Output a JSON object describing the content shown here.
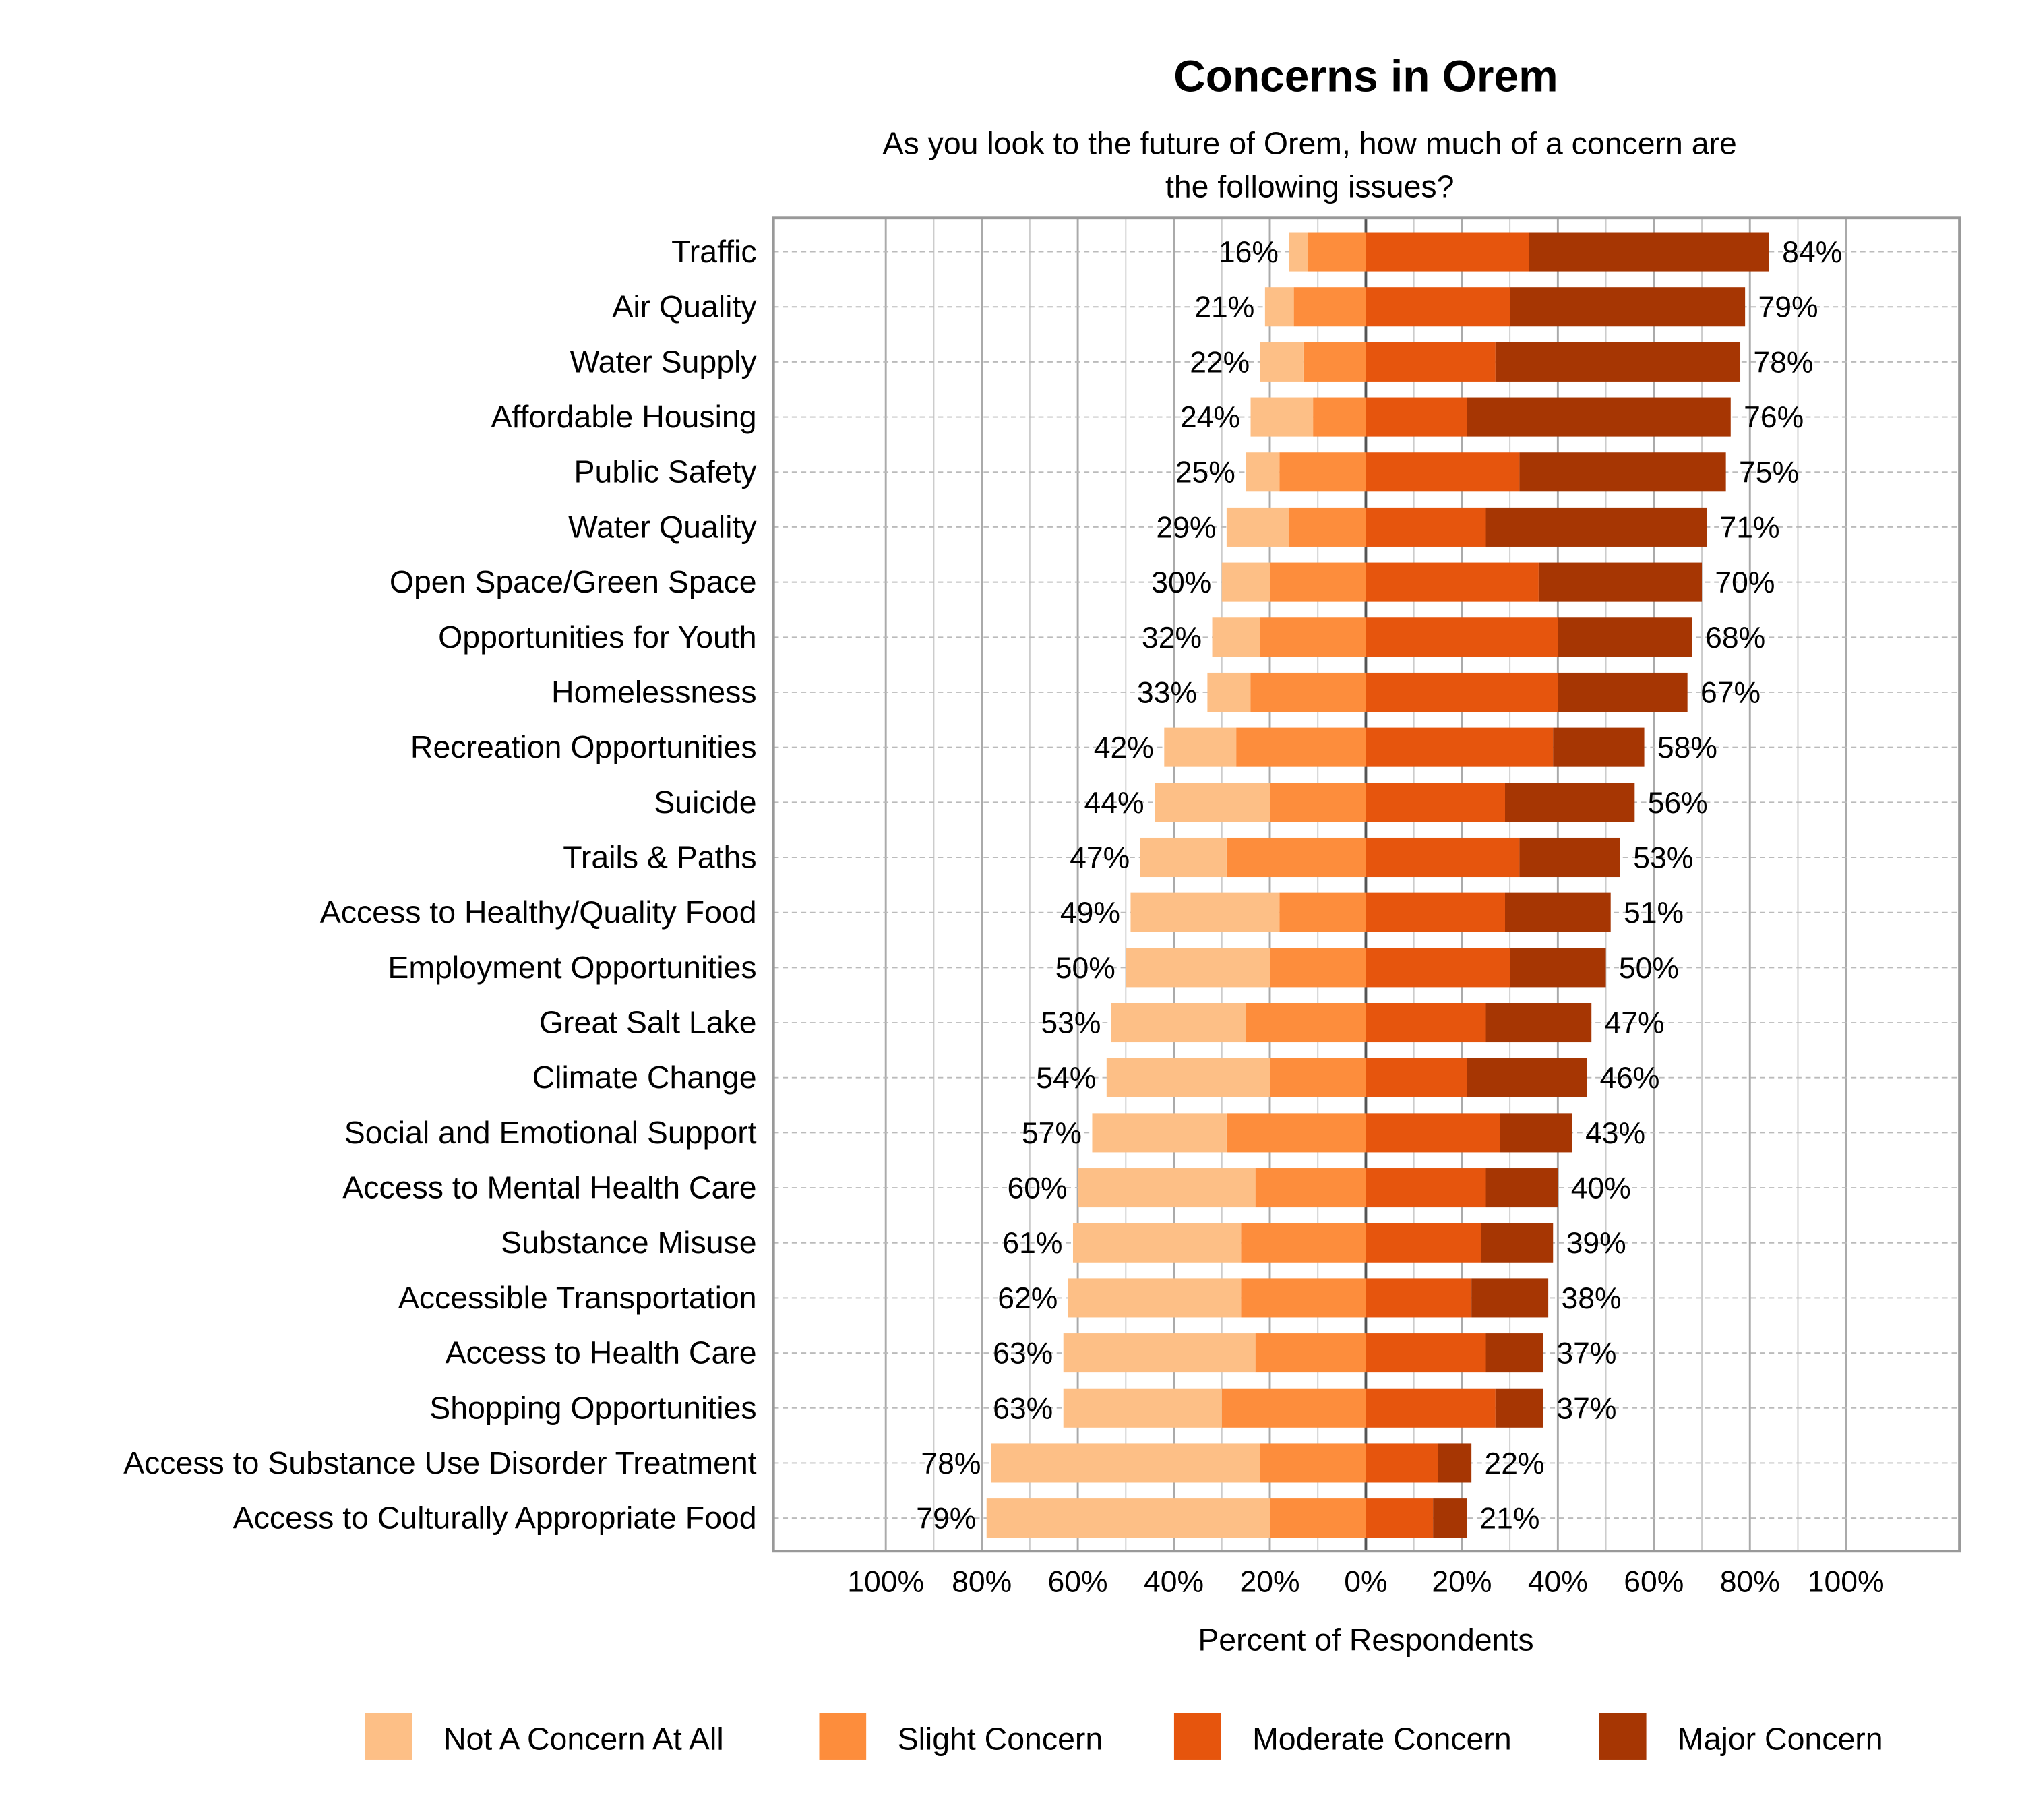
{
  "chart_data": {
    "type": "bar",
    "subtype": "diverging-stacked-horizontal",
    "title": "Concerns in Orem",
    "subtitle_lines": [
      "As you look to the future of Orem, how much of a concern are",
      "the following issues?"
    ],
    "xlabel": "Percent of Respondents",
    "ylabel": "",
    "xlim": [
      -100,
      100
    ],
    "x_ticks": [
      "100%",
      "80%",
      "60%",
      "40%",
      "20%",
      "0%",
      "20%",
      "40%",
      "60%",
      "80%",
      "100%"
    ],
    "grid": true,
    "legend_position": "bottom",
    "categories": [
      "Traffic",
      "Air Quality",
      "Water Supply",
      "Affordable Housing",
      "Public Safety",
      "Water Quality",
      "Open Space/Green Space",
      "Opportunities for Youth",
      "Homelessness",
      "Recreation Opportunities",
      "Suicide",
      "Trails & Paths",
      "Access to Healthy/Quality Food",
      "Employment Opportunities",
      "Great Salt Lake",
      "Climate Change",
      "Social and Emotional Support",
      "Access to Mental Health Care",
      "Substance Misuse",
      "Accessible Transportation",
      "Access to Health Care",
      "Shopping Opportunities",
      "Access to Substance Use Disorder Treatment",
      "Access to Culturally Appropriate Food"
    ],
    "series": [
      {
        "name": "Not A Concern At All",
        "color": "#FDBF86",
        "side": "left",
        "values": [
          4,
          6,
          9,
          13,
          7,
          13,
          10,
          10,
          9,
          15,
          24,
          18,
          31,
          30,
          28,
          34,
          28,
          37,
          35,
          36,
          40,
          33,
          56,
          59
        ]
      },
      {
        "name": "Slight Concern",
        "color": "#FD8D3C",
        "side": "left",
        "values": [
          12,
          15,
          13,
          11,
          18,
          16,
          20,
          22,
          24,
          27,
          20,
          29,
          18,
          20,
          25,
          20,
          29,
          23,
          26,
          26,
          23,
          30,
          22,
          20
        ]
      },
      {
        "name": "Moderate Concern",
        "color": "#E6550D",
        "side": "right",
        "values": [
          34,
          30,
          27,
          21,
          32,
          25,
          36,
          40,
          40,
          39,
          29,
          32,
          29,
          30,
          25,
          21,
          28,
          25,
          24,
          22,
          25,
          27,
          15,
          14
        ]
      },
      {
        "name": "Major Concern",
        "color": "#A63603",
        "side": "right",
        "values": [
          50,
          49,
          51,
          55,
          43,
          46,
          34,
          28,
          27,
          19,
          27,
          21,
          22,
          20,
          22,
          25,
          15,
          15,
          15,
          16,
          12,
          10,
          7,
          7
        ]
      }
    ],
    "left_labels": [
      "16%",
      "21%",
      "22%",
      "24%",
      "25%",
      "29%",
      "30%",
      "32%",
      "33%",
      "42%",
      "44%",
      "47%",
      "49%",
      "50%",
      "53%",
      "54%",
      "57%",
      "60%",
      "61%",
      "62%",
      "63%",
      "63%",
      "78%",
      "79%"
    ],
    "right_labels": [
      "84%",
      "79%",
      "78%",
      "76%",
      "75%",
      "71%",
      "70%",
      "68%",
      "67%",
      "58%",
      "56%",
      "53%",
      "51%",
      "50%",
      "47%",
      "46%",
      "43%",
      "40%",
      "39%",
      "38%",
      "37%",
      "37%",
      "22%",
      "21%"
    ]
  }
}
